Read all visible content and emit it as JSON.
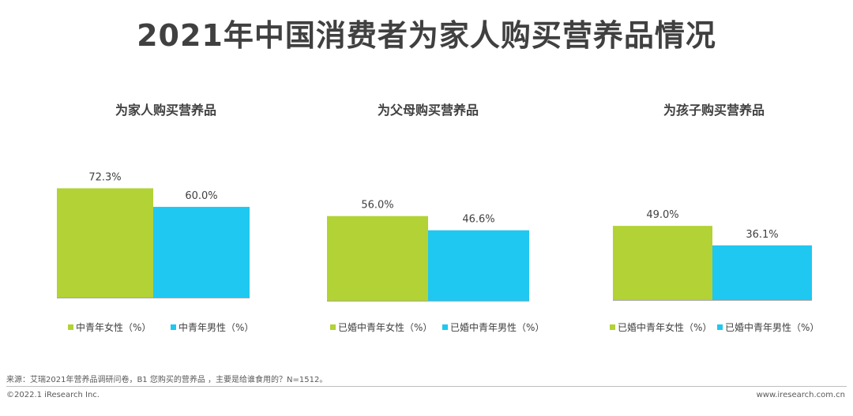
{
  "title": "2021年中国消费者为家人购买营养品情况",
  "colors": {
    "series1": "#B2D235",
    "series2": "#1FC8F0"
  },
  "chart_data": [
    {
      "type": "bar",
      "title": "为家人购买营养品",
      "unit": "%",
      "series": [
        {
          "name": "中青年女性（%）",
          "values": [
            72.3
          ],
          "label": "72.3%"
        },
        {
          "name": "中青年男性（%）",
          "values": [
            60.0
          ],
          "label": "60.0%"
        }
      ]
    },
    {
      "type": "bar",
      "title": "为父母购买营养品",
      "unit": "%",
      "series": [
        {
          "name": "已婚中青年女性（%）",
          "values": [
            56.0
          ],
          "label": "56.0%"
        },
        {
          "name": "已婚中青年男性（%）",
          "values": [
            46.6
          ],
          "label": "46.6%"
        }
      ]
    },
    {
      "type": "bar",
      "title": "为孩子购买营养品",
      "unit": "%",
      "series": [
        {
          "name": "已婚中青年女性（%）",
          "values": [
            49.0
          ],
          "label": "49.0%"
        },
        {
          "name": "已婚中青年男性（%）",
          "values": [
            36.1
          ],
          "label": "36.1%"
        }
      ]
    }
  ],
  "footer": {
    "source": "来源：艾瑞2021年营养品调研问卷，B1 您购买的营养品 ，主要是给谁食用的？N=1512。",
    "copyright": "©2022.1 iResearch Inc.",
    "url": "www.iresearch.com.cn"
  }
}
